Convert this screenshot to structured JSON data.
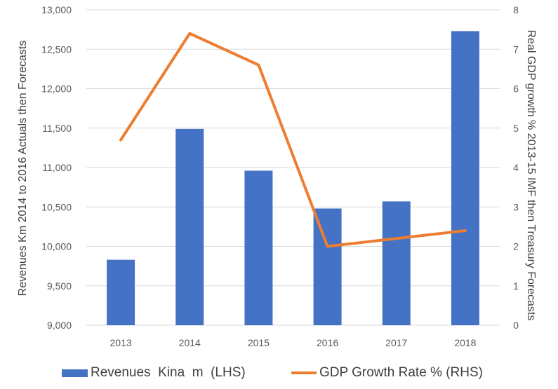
{
  "chart_data": {
    "type": "bar+line",
    "categories": [
      "2013",
      "2014",
      "2015",
      "2016",
      "2017",
      "2018"
    ],
    "series": [
      {
        "name": "Revenues  Kina  m  (LHS)",
        "type": "bar",
        "axis": "left",
        "color": "#4472C4",
        "values": [
          9830,
          11490,
          10960,
          10480,
          10570,
          12730
        ]
      },
      {
        "name": "GDP Growth Rate % (RHS)",
        "type": "line",
        "axis": "right",
        "color": "#ED7D31",
        "values": [
          4.7,
          7.4,
          6.6,
          2.0,
          2.2,
          2.4
        ]
      }
    ],
    "ylabel_left": "Revenues Km 2014 to 2016 Actuals then Forecasts",
    "ylabel_right": "Real GDP growth % 2013-15 IMF then Treasury Forecasts",
    "ylim_left": [
      9000,
      13000
    ],
    "yticks_left": [
      "9,000",
      "9,500",
      "10,000",
      "10,500",
      "11,000",
      "11,500",
      "12,000",
      "12,500",
      "13,000"
    ],
    "ylim_right": [
      0,
      8
    ],
    "yticks_right": [
      "0",
      "1",
      "2",
      "3",
      "4",
      "5",
      "6",
      "7",
      "8"
    ],
    "grid": true,
    "legend_position": "bottom"
  }
}
